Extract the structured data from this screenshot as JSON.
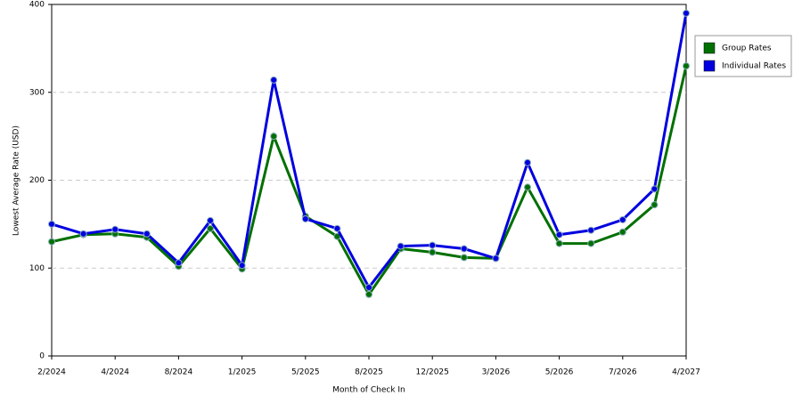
{
  "chart_data": {
    "type": "line",
    "x_label": "Month of Check In",
    "y_label": "Lowest Average Rate (USD)",
    "categories": [
      "2/2024",
      null,
      "4/2024",
      null,
      "8/2024",
      null,
      "1/2025",
      null,
      "5/2025",
      null,
      "8/2025",
      null,
      "12/2025",
      null,
      "3/2026",
      null,
      "5/2026",
      null,
      "7/2026",
      null,
      "4/2027"
    ],
    "series": [
      {
        "name": "Group Rates",
        "color": "#007000",
        "values": [
          130,
          138,
          139,
          135,
          102,
          145,
          99,
          250,
          159,
          136,
          70,
          122,
          118,
          112,
          111,
          192,
          128,
          128,
          141,
          172,
          330
        ]
      },
      {
        "name": "Individual Rates",
        "color": "#0000e0",
        "values": [
          150,
          139,
          144,
          139,
          106,
          154,
          103,
          314,
          156,
          145,
          78,
          125,
          126,
          122,
          111,
          220,
          138,
          143,
          155,
          190,
          390
        ]
      }
    ],
    "ylim": [
      0,
      400
    ],
    "yticks": [
      0,
      100,
      200,
      300,
      400
    ],
    "grid": true,
    "legend": "right"
  }
}
